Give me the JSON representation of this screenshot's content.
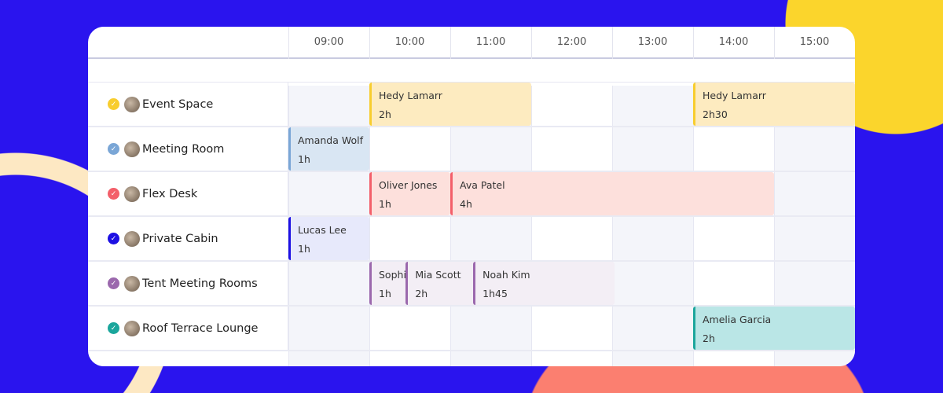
{
  "times": [
    "09:00",
    "10:00",
    "11:00",
    "12:00",
    "13:00",
    "14:00",
    "15:00"
  ],
  "resources": [
    {
      "name": "Event Space",
      "color": "#f8cd2e",
      "bg": "#fdebc0",
      "events": [
        {
          "person": "Hedy Lamarr",
          "duration": "2h",
          "start": "10:00",
          "end": "12:00"
        },
        {
          "person": "Hedy Lamarr",
          "duration": "2h30",
          "start": "14:00",
          "end": "16:30"
        }
      ]
    },
    {
      "name": "Meeting Room",
      "color": "#7aa6d6",
      "bg": "#d9e6f3",
      "events": [
        {
          "person": "Amanda Wolf",
          "duration": "1h",
          "start": "09:00",
          "end": "10:00"
        }
      ]
    },
    {
      "name": "Flex Desk",
      "color": "#f35f6a",
      "bg": "#fde0dc",
      "events": [
        {
          "person": "Oliver Jones",
          "duration": "1h",
          "start": "10:00",
          "end": "11:00"
        },
        {
          "person": "Ava Patel",
          "duration": "4h",
          "start": "11:00",
          "end": "15:00"
        }
      ]
    },
    {
      "name": "Private Cabin",
      "color": "#1d10e3",
      "bg": "#e7e9fb",
      "events": [
        {
          "person": "Lucas Lee",
          "duration": "1h",
          "start": "09:00",
          "end": "10:00"
        }
      ]
    },
    {
      "name": "Tent Meeting Rooms",
      "color": "#9b68ad",
      "bg": "#f3eef5",
      "events": [
        {
          "person": "Sophi",
          "duration": "1h",
          "start": "10:00",
          "end": "11:00"
        },
        {
          "person": "Mia Scott",
          "duration": "2h",
          "start": "10:27",
          "end": "12:27"
        },
        {
          "person": "Noah Kim",
          "duration": "1h45",
          "start": "11:17",
          "end": "13:02"
        }
      ]
    },
    {
      "name": "Roof Terrace Lounge",
      "color": "#1ba69c",
      "bg": "#bae6e6",
      "events": [
        {
          "person": "Amelia Garcia",
          "duration": "2h",
          "start": "14:00",
          "end": "16:00"
        }
      ]
    }
  ],
  "icons": {
    "status": "check-circle-icon",
    "resource": "avatar-thumbnail"
  },
  "background": "#2a14ee"
}
